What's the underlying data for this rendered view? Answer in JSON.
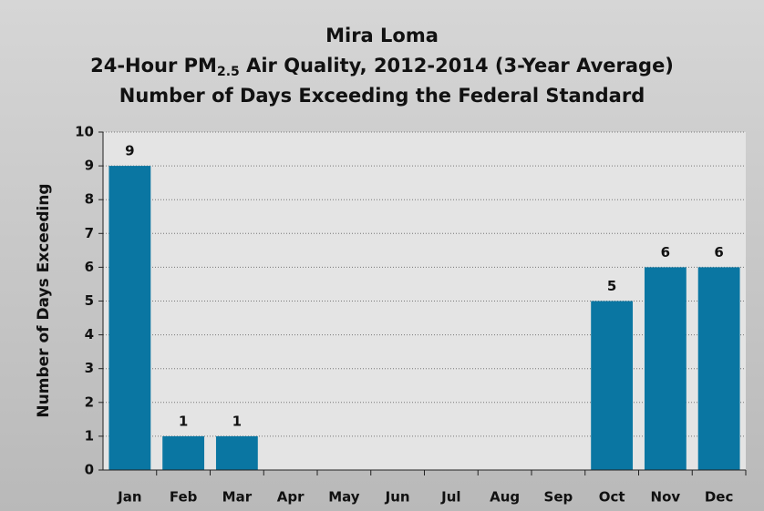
{
  "chart_data": {
    "type": "bar",
    "title": [
      "Mira Loma",
      [
        "24-Hour PM",
        "2.5",
        " Air Quality, 2012-2014 (3-Year Average)"
      ],
      "Number of Days Exceeding the Federal Standard"
    ],
    "y_label": "Number of Days Exceeding",
    "categories": [
      "Jan",
      "Feb",
      "Mar",
      "Apr",
      "May",
      "Jun",
      "Jul",
      "Aug",
      "Sep",
      "Oct",
      "Nov",
      "Dec"
    ],
    "values": [
      9,
      1,
      1,
      0,
      0,
      0,
      0,
      0,
      0,
      5,
      6,
      6
    ],
    "color": "#0a76a2",
    "ylim": [
      0,
      10
    ],
    "yticks": [
      0,
      1,
      2,
      3,
      4,
      5,
      6,
      7,
      8,
      9,
      10
    ],
    "grid": true
  }
}
